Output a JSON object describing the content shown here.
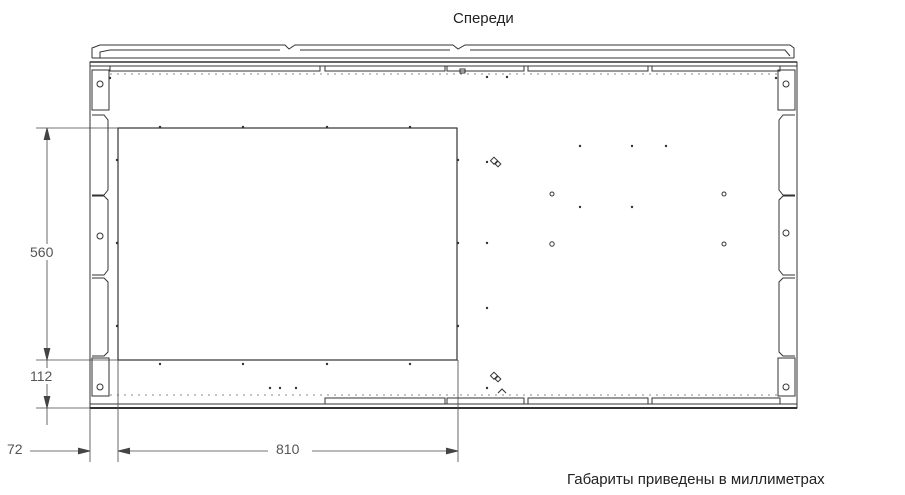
{
  "drawing": {
    "front_label": "Спереди",
    "dimensions": {
      "height_cutout": "560",
      "offset_vertical": "112",
      "offset_horizontal": "72",
      "width_cutout": "810"
    },
    "units_note": "Габариты приведены в миллиметрах"
  }
}
